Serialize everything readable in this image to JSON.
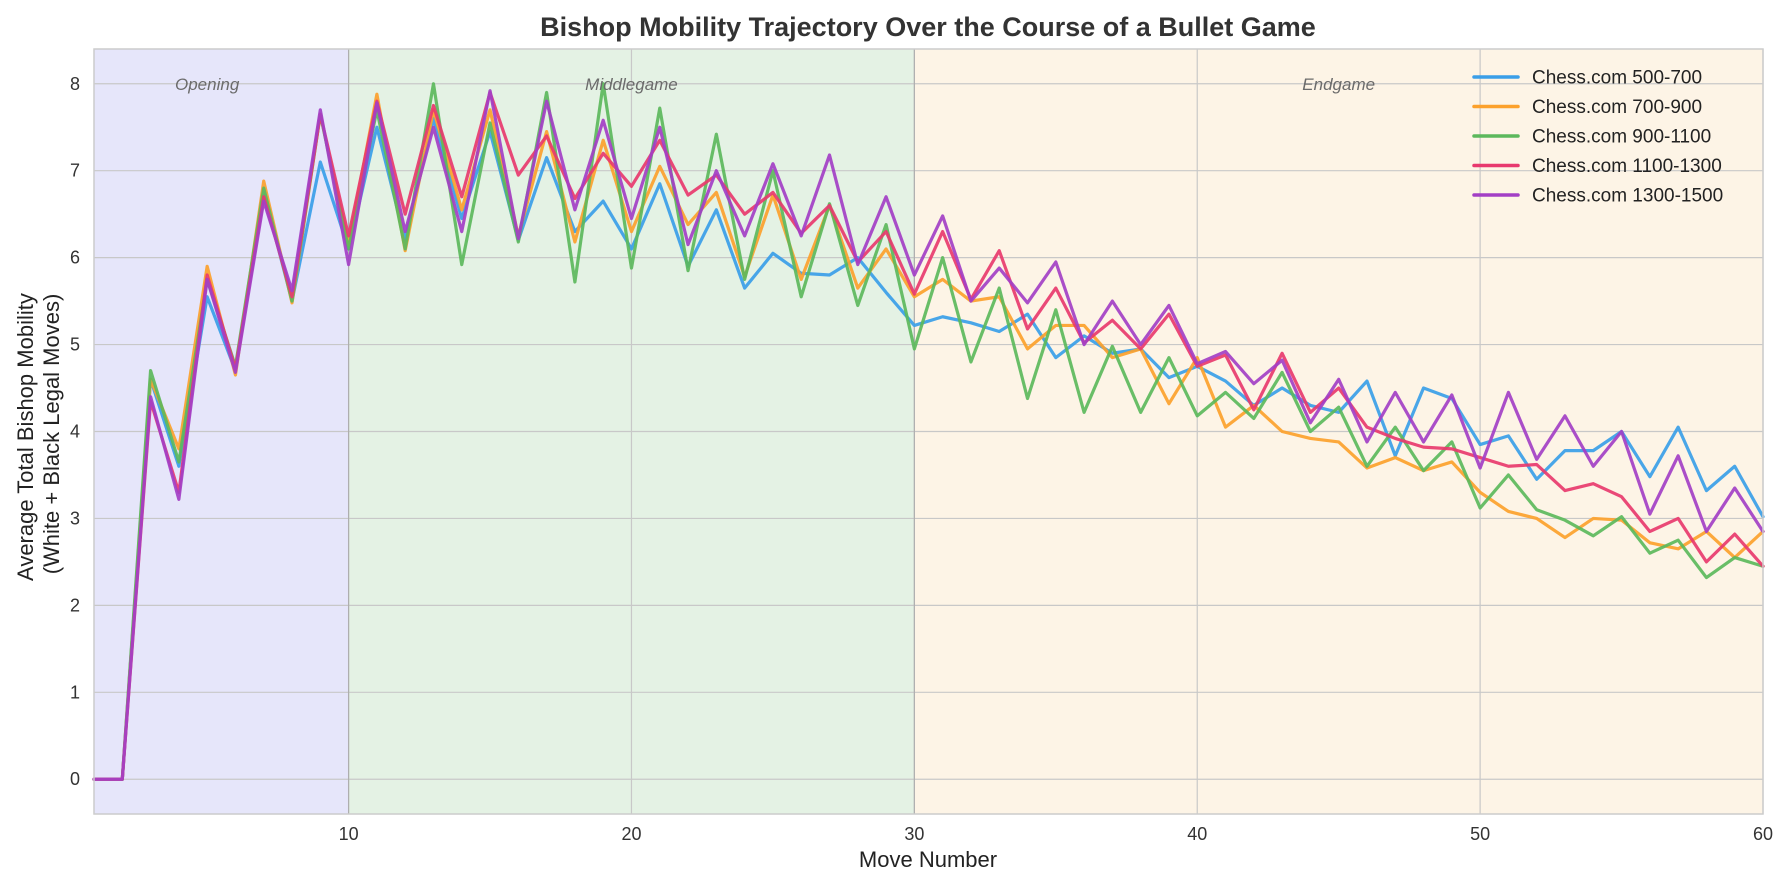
{
  "chart_data": {
    "type": "line",
    "title": "Bishop Mobility Trajectory Over the Course of a Bullet Game",
    "xlabel": "Move Number",
    "ylabel_line1": "Average Total Bishop Mobility",
    "ylabel_line2": "(White + Black Legal Moves)",
    "xlim": [
      1,
      60
    ],
    "ylim": [
      -0.4,
      8.4
    ],
    "xticks": [
      10,
      20,
      30,
      40,
      50,
      60
    ],
    "yticks": [
      0,
      1,
      2,
      3,
      4,
      5,
      6,
      7,
      8
    ],
    "grid": true,
    "legend_position": "top-right",
    "phases": [
      {
        "label": "Opening",
        "x_start": 1,
        "x_end": 10,
        "label_x": 5,
        "color": "#e6e6fa"
      },
      {
        "label": "Middlegame",
        "x_start": 10,
        "x_end": 30,
        "label_x": 20,
        "color": "#e4f2e4"
      },
      {
        "label": "Endgame",
        "x_start": 30,
        "x_end": 60,
        "label_x": 45,
        "color": "#fdf4e6"
      }
    ],
    "x": [
      1,
      2,
      3,
      4,
      5,
      6,
      7,
      8,
      9,
      10,
      11,
      12,
      13,
      14,
      15,
      16,
      17,
      18,
      19,
      20,
      21,
      22,
      23,
      24,
      25,
      26,
      27,
      28,
      29,
      30,
      31,
      32,
      33,
      34,
      35,
      36,
      37,
      38,
      39,
      40,
      41,
      42,
      43,
      44,
      45,
      46,
      47,
      48,
      49,
      50,
      51,
      52,
      53,
      54,
      55,
      56,
      57,
      58,
      59,
      60
    ],
    "series": [
      {
        "name": "Chess.com 500-700",
        "color": "#3a9ee8",
        "values": [
          0,
          0,
          4.6,
          3.6,
          5.55,
          4.7,
          6.75,
          5.5,
          7.1,
          6.1,
          7.5,
          6.2,
          7.6,
          6.45,
          7.45,
          6.2,
          7.15,
          6.3,
          6.65,
          6.1,
          6.85,
          5.9,
          6.55,
          5.65,
          6.05,
          5.82,
          5.8,
          6.0,
          5.6,
          5.22,
          5.32,
          5.25,
          5.15,
          5.35,
          4.85,
          5.1,
          4.9,
          4.95,
          4.62,
          4.75,
          4.58,
          4.3,
          4.5,
          4.3,
          4.22,
          4.58,
          3.72,
          4.5,
          4.38,
          3.85,
          3.95,
          3.45,
          3.78,
          3.78,
          4.0,
          3.48,
          4.05,
          3.32,
          3.6,
          3.02
        ]
      },
      {
        "name": "Chess.com 700-900",
        "color": "#fca12c",
        "values": [
          0,
          0,
          4.6,
          3.8,
          5.9,
          4.65,
          6.88,
          5.48,
          7.65,
          6.15,
          7.88,
          6.08,
          7.7,
          6.55,
          7.7,
          6.25,
          7.45,
          6.18,
          7.35,
          6.3,
          7.05,
          6.38,
          6.75,
          5.78,
          6.72,
          5.75,
          6.6,
          5.65,
          6.1,
          5.55,
          5.75,
          5.5,
          5.55,
          4.95,
          5.22,
          5.22,
          4.85,
          4.95,
          4.32,
          4.85,
          4.05,
          4.3,
          4.0,
          3.92,
          3.88,
          3.58,
          3.7,
          3.55,
          3.65,
          3.3,
          3.08,
          3.0,
          2.78,
          3.0,
          2.98,
          2.72,
          2.65,
          2.85,
          2.55,
          2.85
        ]
      },
      {
        "name": "Chess.com 900-1100",
        "color": "#5cb85c",
        "values": [
          0,
          0,
          4.7,
          3.65,
          5.75,
          4.75,
          6.8,
          5.5,
          7.65,
          6.1,
          7.7,
          6.1,
          8.0,
          5.92,
          7.55,
          6.18,
          7.9,
          5.72,
          8.0,
          5.88,
          7.72,
          5.85,
          7.42,
          5.75,
          7.0,
          5.55,
          6.62,
          5.45,
          6.38,
          4.95,
          6.0,
          4.8,
          5.65,
          4.38,
          5.4,
          4.22,
          4.98,
          4.22,
          4.85,
          4.18,
          4.45,
          4.15,
          4.68,
          4.0,
          4.28,
          3.6,
          4.05,
          3.55,
          3.88,
          3.12,
          3.5,
          3.1,
          2.98,
          2.8,
          3.02,
          2.6,
          2.75,
          2.32,
          2.55,
          2.45
        ]
      },
      {
        "name": "Chess.com 1100-1300",
        "color": "#e8396e",
        "values": [
          0,
          0,
          4.35,
          3.3,
          5.8,
          4.72,
          6.7,
          5.55,
          7.65,
          6.25,
          7.8,
          6.5,
          7.75,
          6.7,
          7.9,
          6.95,
          7.4,
          6.68,
          7.2,
          6.82,
          7.35,
          6.72,
          6.95,
          6.5,
          6.75,
          6.28,
          6.6,
          5.95,
          6.3,
          5.58,
          6.3,
          5.52,
          6.08,
          5.18,
          5.65,
          5.02,
          5.28,
          4.95,
          5.35,
          4.75,
          4.88,
          4.25,
          4.9,
          4.22,
          4.5,
          4.05,
          3.92,
          3.82,
          3.8,
          3.7,
          3.6,
          3.62,
          3.32,
          3.4,
          3.25,
          2.85,
          3.0,
          2.5,
          2.82,
          2.45
        ]
      },
      {
        "name": "Chess.com 1300-1500",
        "color": "#a33fc5",
        "values": [
          0,
          0,
          4.4,
          3.22,
          5.75,
          4.68,
          6.65,
          5.62,
          7.7,
          5.92,
          7.78,
          6.3,
          7.5,
          6.3,
          7.92,
          6.22,
          7.8,
          6.55,
          7.58,
          6.45,
          7.5,
          6.15,
          7.0,
          6.25,
          7.08,
          6.25,
          7.18,
          5.92,
          6.7,
          5.8,
          6.48,
          5.5,
          5.88,
          5.48,
          5.95,
          5.0,
          5.5,
          5.0,
          5.45,
          4.78,
          4.92,
          4.55,
          4.82,
          4.1,
          4.6,
          3.88,
          4.45,
          3.88,
          4.42,
          3.58,
          4.45,
          3.68,
          4.18,
          3.6,
          4.0,
          3.05,
          3.72,
          2.85,
          3.35,
          2.85
        ]
      }
    ]
  }
}
